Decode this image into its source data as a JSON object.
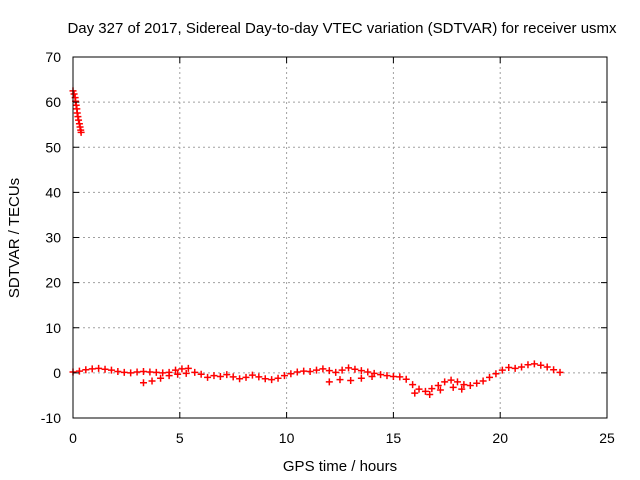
{
  "chart_data": {
    "type": "scatter",
    "title": "Day 327 of 2017, Sidereal Day-to-day VTEC variation (SDTVAR) for receiver usmx",
    "xlabel": "GPS time / hours",
    "ylabel": "SDTVAR / TECUs",
    "xlim": [
      0,
      25
    ],
    "ylim": [
      -10,
      70
    ],
    "xticks": [
      0,
      5,
      10,
      15,
      20,
      25
    ],
    "yticks": [
      -10,
      0,
      10,
      20,
      30,
      40,
      50,
      60,
      70
    ],
    "xtick_labels": [
      "0",
      "5",
      "10",
      "15",
      "20",
      "25"
    ],
    "ytick_labels": [
      "-10",
      "0",
      "10",
      "20",
      "30",
      "40",
      "50",
      "60",
      "70"
    ],
    "grid": true,
    "marker": "+",
    "colors": {
      "series": "#ff0000",
      "grid": "#a0a0a0",
      "axis": "#000000"
    },
    "series": [
      {
        "name": "SDTVAR",
        "points": [
          [
            0.0,
            62.5
          ],
          [
            0.05,
            61.8
          ],
          [
            0.1,
            61.0
          ],
          [
            0.12,
            60.2
          ],
          [
            0.15,
            59.3
          ],
          [
            0.18,
            58.5
          ],
          [
            0.2,
            57.6
          ],
          [
            0.23,
            56.8
          ],
          [
            0.26,
            56.0
          ],
          [
            0.3,
            55.2
          ],
          [
            0.33,
            54.5
          ],
          [
            0.36,
            53.8
          ],
          [
            0.38,
            53.3
          ],
          [
            0.0,
            0.2
          ],
          [
            0.3,
            0.4
          ],
          [
            0.6,
            0.7
          ],
          [
            0.9,
            0.9
          ],
          [
            1.2,
            1.0
          ],
          [
            1.5,
            0.8
          ],
          [
            1.8,
            0.6
          ],
          [
            2.1,
            0.3
          ],
          [
            2.4,
            0.1
          ],
          [
            2.7,
            0.0
          ],
          [
            3.0,
            0.2
          ],
          [
            3.3,
            0.3
          ],
          [
            3.6,
            0.2
          ],
          [
            3.9,
            0.1
          ],
          [
            4.2,
            0.0
          ],
          [
            4.5,
            0.1
          ],
          [
            4.8,
            0.6
          ],
          [
            5.1,
            0.9
          ],
          [
            5.4,
            1.0
          ],
          [
            3.3,
            -2.2
          ],
          [
            3.7,
            -1.8
          ],
          [
            4.1,
            -1.2
          ],
          [
            4.5,
            -0.6
          ],
          [
            4.9,
            -0.3
          ],
          [
            5.3,
            -0.1
          ],
          [
            5.7,
            0.1
          ],
          [
            6.0,
            -0.3
          ],
          [
            6.3,
            -1.0
          ],
          [
            6.6,
            -0.6
          ],
          [
            6.9,
            -0.8
          ],
          [
            7.2,
            -0.4
          ],
          [
            7.5,
            -0.9
          ],
          [
            7.8,
            -1.3
          ],
          [
            8.1,
            -1.0
          ],
          [
            8.4,
            -0.5
          ],
          [
            8.7,
            -0.9
          ],
          [
            9.0,
            -1.3
          ],
          [
            9.3,
            -1.5
          ],
          [
            9.6,
            -1.2
          ],
          [
            9.9,
            -0.6
          ],
          [
            10.2,
            -0.2
          ],
          [
            10.5,
            0.2
          ],
          [
            10.8,
            0.4
          ],
          [
            11.1,
            0.3
          ],
          [
            11.4,
            0.6
          ],
          [
            11.7,
            0.9
          ],
          [
            12.0,
            0.5
          ],
          [
            12.3,
            0.1
          ],
          [
            12.6,
            0.6
          ],
          [
            12.9,
            1.1
          ],
          [
            13.2,
            0.8
          ],
          [
            13.5,
            0.5
          ],
          [
            13.8,
            0.2
          ],
          [
            14.1,
            -0.1
          ],
          [
            14.4,
            -0.4
          ],
          [
            14.7,
            -0.6
          ],
          [
            15.0,
            -0.8
          ],
          [
            15.3,
            -0.9
          ],
          [
            15.6,
            -1.4
          ],
          [
            15.9,
            -2.6
          ],
          [
            16.2,
            -3.6
          ],
          [
            16.5,
            -4.1
          ],
          [
            16.8,
            -3.5
          ],
          [
            17.1,
            -2.8
          ],
          [
            17.4,
            -2.0
          ],
          [
            17.7,
            -1.6
          ],
          [
            18.0,
            -2.0
          ],
          [
            18.3,
            -2.6
          ],
          [
            18.6,
            -2.8
          ],
          [
            18.9,
            -2.3
          ],
          [
            19.2,
            -1.8
          ],
          [
            19.5,
            -1.0
          ],
          [
            19.8,
            -0.2
          ],
          [
            20.1,
            0.6
          ],
          [
            20.4,
            1.2
          ],
          [
            20.7,
            1.0
          ],
          [
            21.0,
            1.3
          ],
          [
            21.3,
            1.8
          ],
          [
            21.6,
            2.0
          ],
          [
            21.9,
            1.7
          ],
          [
            22.2,
            1.3
          ],
          [
            22.5,
            0.7
          ],
          [
            22.8,
            0.1
          ],
          [
            12.0,
            -2.0
          ],
          [
            12.5,
            -1.5
          ],
          [
            13.0,
            -1.7
          ],
          [
            13.5,
            -1.2
          ],
          [
            14.0,
            -0.8
          ],
          [
            16.0,
            -4.5
          ],
          [
            16.7,
            -4.8
          ],
          [
            17.2,
            -3.8
          ],
          [
            17.8,
            -3.2
          ],
          [
            18.2,
            -3.6
          ]
        ]
      }
    ]
  }
}
